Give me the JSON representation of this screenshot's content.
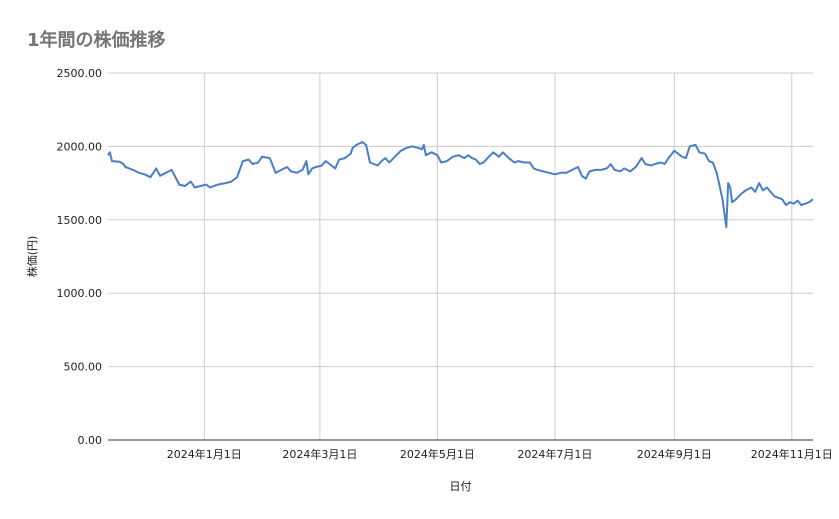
{
  "chart_data": {
    "type": "line",
    "title": "1年間の株価推移",
    "xlabel": "日付",
    "ylabel": "株価(円)",
    "ylim": [
      0,
      2500
    ],
    "y_ticks": [
      "0.00",
      "500.00",
      "1000.00",
      "1500.00",
      "2000.00",
      "2500.00"
    ],
    "y_tick_values": [
      0,
      500,
      1000,
      1500,
      2000,
      2500
    ],
    "x_range": [
      "2023-11-12",
      "2024-11-12"
    ],
    "x_ticks": [
      {
        "date": "2024-01-01",
        "label": "2024年1月1日"
      },
      {
        "date": "2024-03-01",
        "label": "2024年3月1日"
      },
      {
        "date": "2024-05-01",
        "label": "2024年5月1日"
      },
      {
        "date": "2024-07-01",
        "label": "2024年7月1日"
      },
      {
        "date": "2024-09-01",
        "label": "2024年9月1日"
      },
      {
        "date": "2024-11-01",
        "label": "2024年11月1日"
      }
    ],
    "grid": true,
    "legend": "none",
    "line_color": "#4a7fc8",
    "series": [
      {
        "name": "",
        "points": [
          [
            "2023-11-12",
            1940
          ],
          [
            "2023-11-13",
            1960
          ],
          [
            "2023-11-14",
            1900
          ],
          [
            "2023-11-18",
            1895
          ],
          [
            "2023-11-20",
            1880
          ],
          [
            "2023-11-21",
            1860
          ],
          [
            "2023-11-23",
            1850
          ],
          [
            "2023-11-25",
            1840
          ],
          [
            "2023-11-28",
            1820
          ],
          [
            "2023-12-01",
            1810
          ],
          [
            "2023-12-04",
            1790
          ],
          [
            "2023-12-07",
            1850
          ],
          [
            "2023-12-09",
            1800
          ],
          [
            "2023-12-12",
            1820
          ],
          [
            "2023-12-15",
            1840
          ],
          [
            "2023-12-19",
            1740
          ],
          [
            "2023-12-22",
            1730
          ],
          [
            "2023-12-25",
            1760
          ],
          [
            "2023-12-27",
            1720
          ],
          [
            "2023-12-30",
            1730
          ],
          [
            "2024-01-02",
            1740
          ],
          [
            "2024-01-04",
            1720
          ],
          [
            "2024-01-08",
            1740
          ],
          [
            "2024-01-12",
            1750
          ],
          [
            "2024-01-15",
            1760
          ],
          [
            "2024-01-18",
            1790
          ],
          [
            "2024-01-21",
            1900
          ],
          [
            "2024-01-24",
            1910
          ],
          [
            "2024-01-26",
            1880
          ],
          [
            "2024-01-29",
            1890
          ],
          [
            "2024-01-31",
            1930
          ],
          [
            "2024-02-04",
            1920
          ],
          [
            "2024-02-07",
            1820
          ],
          [
            "2024-02-10",
            1840
          ],
          [
            "2024-02-13",
            1860
          ],
          [
            "2024-02-15",
            1830
          ],
          [
            "2024-02-18",
            1820
          ],
          [
            "2024-02-21",
            1840
          ],
          [
            "2024-02-23",
            1900
          ],
          [
            "2024-02-24",
            1810
          ],
          [
            "2024-02-26",
            1850
          ],
          [
            "2024-02-28",
            1860
          ],
          [
            "2024-03-02",
            1870
          ],
          [
            "2024-03-04",
            1900
          ],
          [
            "2024-03-06",
            1880
          ],
          [
            "2024-03-09",
            1850
          ],
          [
            "2024-03-11",
            1910
          ],
          [
            "2024-03-14",
            1920
          ],
          [
            "2024-03-17",
            1950
          ],
          [
            "2024-03-18",
            1990
          ],
          [
            "2024-03-20",
            2010
          ],
          [
            "2024-03-23",
            2030
          ],
          [
            "2024-03-25",
            2010
          ],
          [
            "2024-03-27",
            1890
          ],
          [
            "2024-03-31",
            1870
          ],
          [
            "2024-04-02",
            1900
          ],
          [
            "2024-04-04",
            1920
          ],
          [
            "2024-04-06",
            1890
          ],
          [
            "2024-04-09",
            1930
          ],
          [
            "2024-04-12",
            1970
          ],
          [
            "2024-04-15",
            1990
          ],
          [
            "2024-04-18",
            2000
          ],
          [
            "2024-04-21",
            1990
          ],
          [
            "2024-04-23",
            1980
          ],
          [
            "2024-04-24",
            2010
          ],
          [
            "2024-04-25",
            1940
          ],
          [
            "2024-04-28",
            1960
          ],
          [
            "2024-05-01",
            1940
          ],
          [
            "2024-05-03",
            1890
          ],
          [
            "2024-05-06",
            1900
          ],
          [
            "2024-05-09",
            1930
          ],
          [
            "2024-05-12",
            1940
          ],
          [
            "2024-05-15",
            1920
          ],
          [
            "2024-05-17",
            1940
          ],
          [
            "2024-05-19",
            1920
          ],
          [
            "2024-05-21",
            1910
          ],
          [
            "2024-05-23",
            1880
          ],
          [
            "2024-05-25",
            1890
          ],
          [
            "2024-05-27",
            1920
          ],
          [
            "2024-05-30",
            1960
          ],
          [
            "2024-06-02",
            1930
          ],
          [
            "2024-06-04",
            1960
          ],
          [
            "2024-06-07",
            1920
          ],
          [
            "2024-06-10",
            1890
          ],
          [
            "2024-06-12",
            1900
          ],
          [
            "2024-06-15",
            1890
          ],
          [
            "2024-06-18",
            1890
          ],
          [
            "2024-06-20",
            1850
          ],
          [
            "2024-06-22",
            1840
          ],
          [
            "2024-06-25",
            1830
          ],
          [
            "2024-06-28",
            1820
          ],
          [
            "2024-07-01",
            1810
          ],
          [
            "2024-07-04",
            1820
          ],
          [
            "2024-07-07",
            1820
          ],
          [
            "2024-07-10",
            1840
          ],
          [
            "2024-07-13",
            1860
          ],
          [
            "2024-07-15",
            1800
          ],
          [
            "2024-07-17",
            1780
          ],
          [
            "2024-07-19",
            1830
          ],
          [
            "2024-07-22",
            1840
          ],
          [
            "2024-07-25",
            1840
          ],
          [
            "2024-07-28",
            1850
          ],
          [
            "2024-07-30",
            1880
          ],
          [
            "2024-08-01",
            1840
          ],
          [
            "2024-08-04",
            1830
          ],
          [
            "2024-08-06",
            1850
          ],
          [
            "2024-08-09",
            1830
          ],
          [
            "2024-08-12",
            1860
          ],
          [
            "2024-08-15",
            1920
          ],
          [
            "2024-08-17",
            1880
          ],
          [
            "2024-08-20",
            1870
          ],
          [
            "2024-08-22",
            1880
          ],
          [
            "2024-08-25",
            1890
          ],
          [
            "2024-08-27",
            1880
          ],
          [
            "2024-08-29",
            1920
          ],
          [
            "2024-09-01",
            1970
          ],
          [
            "2024-09-03",
            1950
          ],
          [
            "2024-09-05",
            1930
          ],
          [
            "2024-09-07",
            1920
          ],
          [
            "2024-09-09",
            2000
          ],
          [
            "2024-09-12",
            2010
          ],
          [
            "2024-09-14",
            1960
          ],
          [
            "2024-09-17",
            1950
          ],
          [
            "2024-09-19",
            1900
          ],
          [
            "2024-09-21",
            1890
          ],
          [
            "2024-09-23",
            1820
          ],
          [
            "2024-09-26",
            1640
          ],
          [
            "2024-09-28",
            1450
          ],
          [
            "2024-09-29",
            1750
          ],
          [
            "2024-09-30",
            1720
          ],
          [
            "2024-10-01",
            1620
          ],
          [
            "2024-10-03",
            1640
          ],
          [
            "2024-10-06",
            1680
          ],
          [
            "2024-10-08",
            1700
          ],
          [
            "2024-10-11",
            1720
          ],
          [
            "2024-10-13",
            1690
          ],
          [
            "2024-10-15",
            1750
          ],
          [
            "2024-10-17",
            1700
          ],
          [
            "2024-10-19",
            1720
          ],
          [
            "2024-10-21",
            1690
          ],
          [
            "2024-10-23",
            1660
          ],
          [
            "2024-10-25",
            1650
          ],
          [
            "2024-10-27",
            1640
          ],
          [
            "2024-10-29",
            1600
          ],
          [
            "2024-10-31",
            1620
          ],
          [
            "2024-11-02",
            1610
          ],
          [
            "2024-11-04",
            1630
          ],
          [
            "2024-11-06",
            1600
          ],
          [
            "2024-11-08",
            1610
          ],
          [
            "2024-11-10",
            1620
          ],
          [
            "2024-11-12",
            1640
          ]
        ]
      }
    ]
  }
}
